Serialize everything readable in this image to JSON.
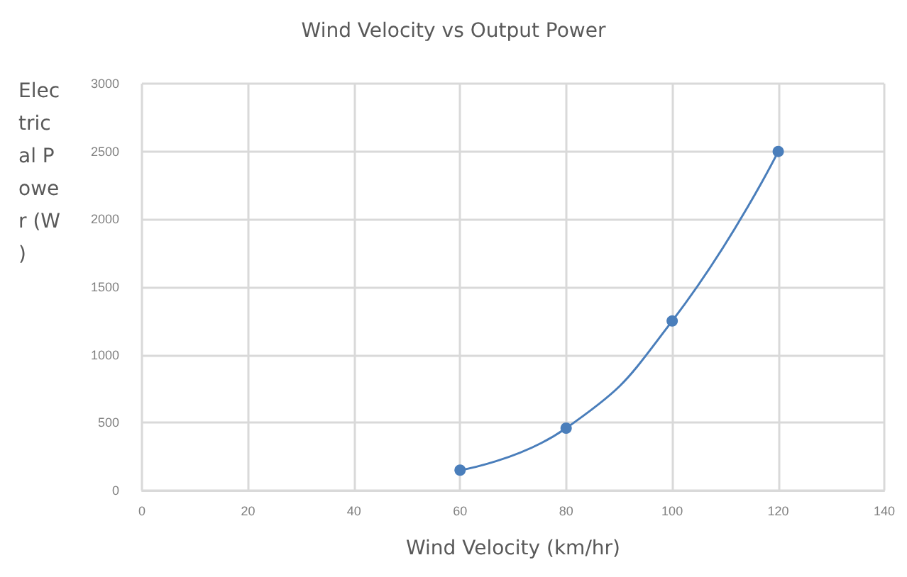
{
  "chart_data": {
    "type": "line",
    "title": "Wind Velocity vs Output Power",
    "xlabel": "Wind Velocity (km/hr)",
    "ylabel": "Electrical Power (W)",
    "x": [
      60,
      80,
      100,
      120
    ],
    "series": [
      {
        "color": "#4a7ebb",
        "values": [
          150,
          460,
          1250,
          2500
        ]
      }
    ],
    "xlim": [
      0,
      140
    ],
    "xticks": [
      0,
      20,
      40,
      60,
      80,
      100,
      120,
      140
    ],
    "ylim": [
      0,
      3000
    ],
    "yticks": [
      0,
      500,
      1000,
      1500,
      2000,
      2500,
      3000
    ],
    "grid": true,
    "marker": "circle",
    "line_style": "solid"
  }
}
